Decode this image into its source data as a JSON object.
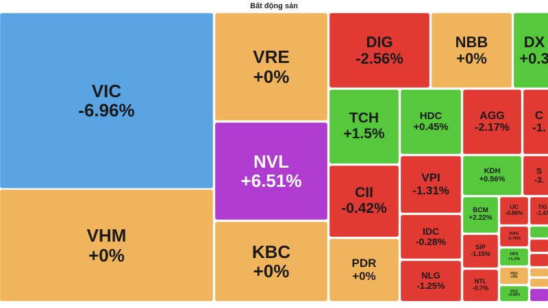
{
  "title": "Bất động sản",
  "colors": {
    "down": "#e03a32",
    "flat": "#f0b55c",
    "up": "#55c93b",
    "ceiling": "#b03bd1",
    "big": "#5aa4e4"
  },
  "chart_data": {
    "type": "treemap",
    "title": "Bất động sản",
    "items": [
      {
        "ticker": "VIC",
        "change": "-6.96%"
      },
      {
        "ticker": "VHM",
        "change": "+0%"
      },
      {
        "ticker": "VRE",
        "change": "+0%"
      },
      {
        "ticker": "NVL",
        "change": "+6.51%"
      },
      {
        "ticker": "KBC",
        "change": "+0%"
      },
      {
        "ticker": "DIG",
        "change": "-2.56%"
      },
      {
        "ticker": "NBB",
        "change": "+0%"
      },
      {
        "ticker": "DX",
        "change": "+0.3"
      },
      {
        "ticker": "TCH",
        "change": "+1.5%"
      },
      {
        "ticker": "HDC",
        "change": "+0.45%"
      },
      {
        "ticker": "AGG",
        "change": "-2.17%"
      },
      {
        "ticker": "C",
        "change": "-1."
      },
      {
        "ticker": "CII",
        "change": "-0.42%"
      },
      {
        "ticker": "VPI",
        "change": "-1.31%"
      },
      {
        "ticker": "KDH",
        "change": "+0.56%"
      },
      {
        "ticker": "S",
        "change": "-3."
      },
      {
        "ticker": "PDR",
        "change": "+0%"
      },
      {
        "ticker": "IDC",
        "change": "-0.28%"
      },
      {
        "ticker": "NLG",
        "change": "-1.25%"
      },
      {
        "ticker": "BCM",
        "change": "+2.22%"
      },
      {
        "ticker": "IJC",
        "change": "-0.86%"
      },
      {
        "ticker": "TIG",
        "change": "-1.47"
      },
      {
        "ticker": "KHG",
        "change": "-0.76%"
      },
      {
        "ticker": "SIP",
        "change": "-1.15%"
      },
      {
        "ticker": "HPX",
        "change": "+1.2%"
      },
      {
        "ticker": "NTL",
        "change": "-0.7%"
      },
      {
        "ticker": "HQC",
        "change": "+0%"
      },
      {
        "ticker": "QCG",
        "change": "+2.88%"
      }
    ]
  }
}
